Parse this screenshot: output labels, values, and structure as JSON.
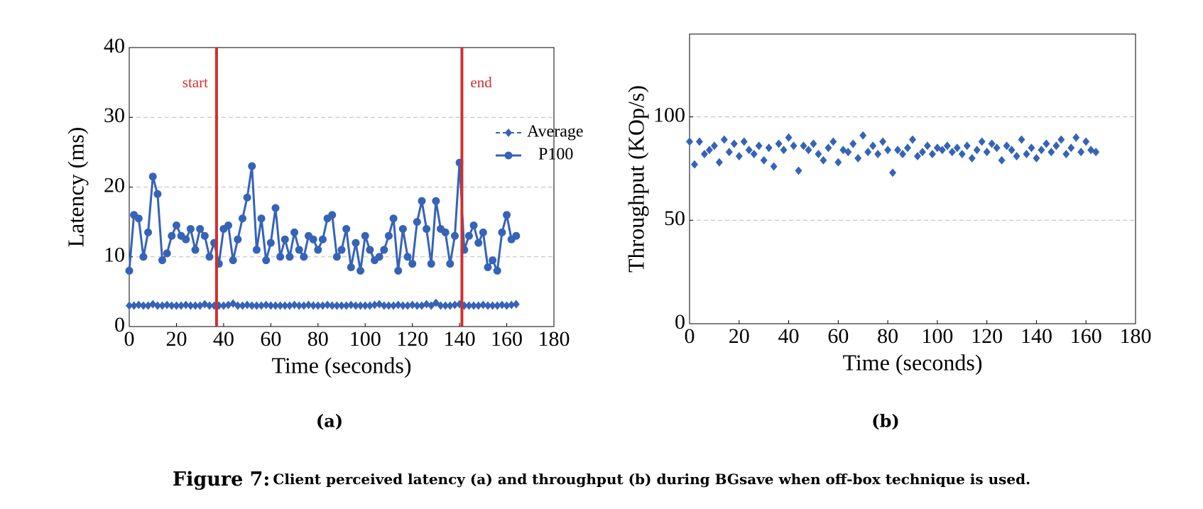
{
  "chart_data": [
    {
      "type": "line",
      "xlabel": "Time (seconds)",
      "ylabel": "Latency (ms)",
      "xlim": [
        0,
        180
      ],
      "ylim": [
        0,
        40
      ],
      "xticks": [
        0,
        20,
        40,
        60,
        80,
        100,
        120,
        140,
        160,
        180
      ],
      "yticks": [
        0,
        10,
        20,
        30,
        40
      ],
      "grid": true,
      "legend": "right",
      "x": [
        0,
        2,
        4,
        6,
        8,
        10,
        12,
        14,
        16,
        18,
        20,
        22,
        24,
        26,
        28,
        30,
        32,
        34,
        36,
        38,
        40,
        42,
        44,
        46,
        48,
        50,
        52,
        54,
        56,
        58,
        60,
        62,
        64,
        66,
        68,
        70,
        72,
        74,
        76,
        78,
        80,
        82,
        84,
        86,
        88,
        90,
        92,
        94,
        96,
        98,
        100,
        102,
        104,
        106,
        108,
        110,
        112,
        114,
        116,
        118,
        120,
        122,
        124,
        126,
        128,
        130,
        132,
        134,
        136,
        138,
        140,
        142,
        144,
        146,
        148,
        150,
        152,
        154,
        156,
        158,
        160,
        162,
        164
      ],
      "series": [
        {
          "name": "Average",
          "color": "#3563b8",
          "marker": "diamond",
          "dashed": true,
          "values": [
            3,
            3,
            3.1,
            3,
            3,
            3.2,
            3,
            3,
            3.1,
            3,
            3,
            3,
            3.1,
            3,
            3,
            3,
            3.2,
            3,
            3,
            3,
            3,
            3.1,
            3.3,
            3,
            3,
            3.1,
            3,
            3,
            3,
            3.1,
            3,
            3,
            3,
            3,
            3,
            3.1,
            3,
            3,
            3.1,
            3,
            3,
            3,
            3.1,
            3,
            3,
            3,
            3,
            3.1,
            3,
            3,
            3,
            3,
            3.1,
            3.2,
            3,
            3,
            3,
            3.1,
            3,
            3,
            3.1,
            3,
            3,
            3.2,
            3,
            3.4,
            3,
            3,
            3,
            3.1,
            3.2,
            3,
            3,
            3,
            3,
            3.1,
            3,
            3,
            3,
            3.1,
            3,
            3.1,
            3.2
          ]
        },
        {
          "name": "P100",
          "color": "#3563b8",
          "marker": "circle",
          "dashed": false,
          "values": [
            8,
            16,
            15.5,
            10,
            13.5,
            21.5,
            19,
            9.5,
            10.5,
            13,
            14.5,
            13,
            12.5,
            14,
            11,
            14,
            13,
            10,
            12,
            9,
            14,
            14.5,
            9.5,
            12.5,
            15.5,
            18.5,
            23,
            11,
            15.5,
            9.5,
            12,
            17,
            10,
            12.5,
            10,
            13.5,
            11,
            10,
            13,
            12.5,
            11,
            12.5,
            15.5,
            16,
            10,
            11,
            14,
            8.5,
            12,
            8,
            13,
            11,
            9.5,
            10,
            11,
            13,
            15.5,
            8,
            14,
            10,
            9,
            15,
            18,
            14,
            9,
            18,
            14,
            13.5,
            9,
            13,
            23.5,
            11,
            13,
            14.5,
            12,
            13.5,
            8.5,
            9.5,
            8,
            13.5,
            16,
            12.5,
            13
          ]
        }
      ],
      "annotations": [
        {
          "x": 37,
          "label": "start",
          "color": "#d03030"
        },
        {
          "x": 141,
          "label": "end",
          "color": "#d03030"
        }
      ]
    },
    {
      "type": "line",
      "xlabel": "Time (seconds)",
      "ylabel": "Throughput (KOp/s)",
      "xlim": [
        0,
        180
      ],
      "ylim": [
        0,
        140
      ],
      "xticks": [
        0,
        20,
        40,
        60,
        80,
        100,
        120,
        140,
        160,
        180
      ],
      "yticks": [
        0,
        50,
        100
      ],
      "grid": true,
      "color": "#3563b8",
      "marker": "diamond",
      "x": [
        0,
        2,
        4,
        6,
        8,
        10,
        12,
        14,
        16,
        18,
        20,
        22,
        24,
        26,
        28,
        30,
        32,
        34,
        36,
        38,
        40,
        42,
        44,
        46,
        48,
        50,
        52,
        54,
        56,
        58,
        60,
        62,
        64,
        66,
        68,
        70,
        72,
        74,
        76,
        78,
        80,
        82,
        84,
        86,
        88,
        90,
        92,
        94,
        96,
        98,
        100,
        102,
        104,
        106,
        108,
        110,
        112,
        114,
        116,
        118,
        120,
        122,
        124,
        126,
        128,
        130,
        132,
        134,
        136,
        138,
        140,
        142,
        144,
        146,
        148,
        150,
        152,
        154,
        156,
        158,
        160,
        162,
        164
      ],
      "values": [
        88,
        77,
        88,
        82,
        84,
        86,
        78,
        89,
        83,
        87,
        81,
        88,
        84,
        82,
        86,
        79,
        85,
        76,
        87,
        84,
        90,
        86,
        74,
        86,
        84,
        87,
        82,
        79,
        85,
        88,
        78,
        84,
        83,
        87,
        80,
        91,
        83,
        86,
        82,
        88,
        84,
        73,
        84,
        82,
        85,
        89,
        81,
        83,
        86,
        82,
        85,
        84,
        86,
        83,
        85,
        82,
        86,
        80,
        84,
        88,
        83,
        87,
        85,
        79,
        86,
        84,
        81,
        89,
        82,
        85,
        80,
        84,
        87,
        83,
        86,
        89,
        82,
        85,
        90,
        83,
        88,
        84,
        83
      ]
    }
  ],
  "panel_labels": [
    "(a)",
    "(b)"
  ],
  "caption": {
    "label": "Figure 7:",
    "text": "Client perceived latency (a) and throughput (b) during BGsave when off-box technique is used."
  }
}
